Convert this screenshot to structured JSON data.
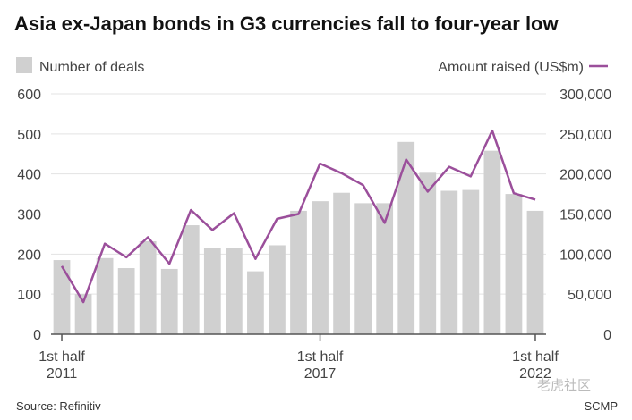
{
  "chart_data": {
    "type": "bar+line",
    "title": "Asia ex-Japan bonds in G3 currencies fall to four-year low",
    "legend": {
      "bars": "Number of deals",
      "line": "Amount raised (US$m)"
    },
    "periods": [
      "1H2011",
      "2H2011",
      "1H2012",
      "2H2012",
      "1H2013",
      "2H2013",
      "1H2014",
      "2H2014",
      "1H2015",
      "2H2015",
      "1H2016",
      "2H2016",
      "1H2017",
      "2H2017",
      "1H2018",
      "2H2018",
      "1H2019",
      "2H2019",
      "1H2020",
      "2H2020",
      "1H2021",
      "2H2021",
      "1H2022"
    ],
    "x_tick_labels": [
      {
        "index": 0,
        "line1": "1st half",
        "line2": "2011"
      },
      {
        "index": 12,
        "line1": "1st half",
        "line2": "2017"
      },
      {
        "index": 22,
        "line1": "1st half",
        "line2": "2022"
      }
    ],
    "series": [
      {
        "name": "Number of deals",
        "kind": "bar",
        "axis": "left",
        "color": "#d0d0d0",
        "values": [
          185,
          100,
          190,
          165,
          232,
          163,
          272,
          215,
          215,
          157,
          222,
          308,
          332,
          353,
          327,
          327,
          480,
          403,
          358,
          360,
          458,
          350,
          308
        ]
      },
      {
        "name": "Amount raised (US$m)",
        "kind": "line",
        "axis": "right",
        "color": "#9b4f9b",
        "values": [
          85000,
          40000,
          113000,
          96000,
          121000,
          88000,
          155000,
          130000,
          151000,
          94000,
          144000,
          150000,
          213000,
          201000,
          186000,
          139000,
          218000,
          178000,
          209000,
          197000,
          254000,
          176000,
          168000
        ]
      }
    ],
    "left_axis": {
      "min": 0,
      "max": 600,
      "ticks": [
        0,
        100,
        200,
        300,
        400,
        500,
        600
      ],
      "tick_labels": [
        "0",
        "100",
        "200",
        "300",
        "400",
        "500",
        "600"
      ]
    },
    "right_axis": {
      "min": 0,
      "max": 300000,
      "ticks": [
        0,
        50000,
        100000,
        150000,
        200000,
        250000,
        300000
      ],
      "tick_labels": [
        "0",
        "50,000",
        "100,000",
        "150,000",
        "200,000",
        "250,000",
        "300,000"
      ]
    },
    "grid": true,
    "legend_placement": "top"
  },
  "footer": {
    "source": "Source: Refinitiv",
    "credit": "SCMP",
    "watermark": "老虎社区"
  },
  "colors": {
    "bar": "#d0d0d0",
    "line": "#9b4f9b",
    "grid": "#e3e3e3",
    "axis": "#555555"
  }
}
